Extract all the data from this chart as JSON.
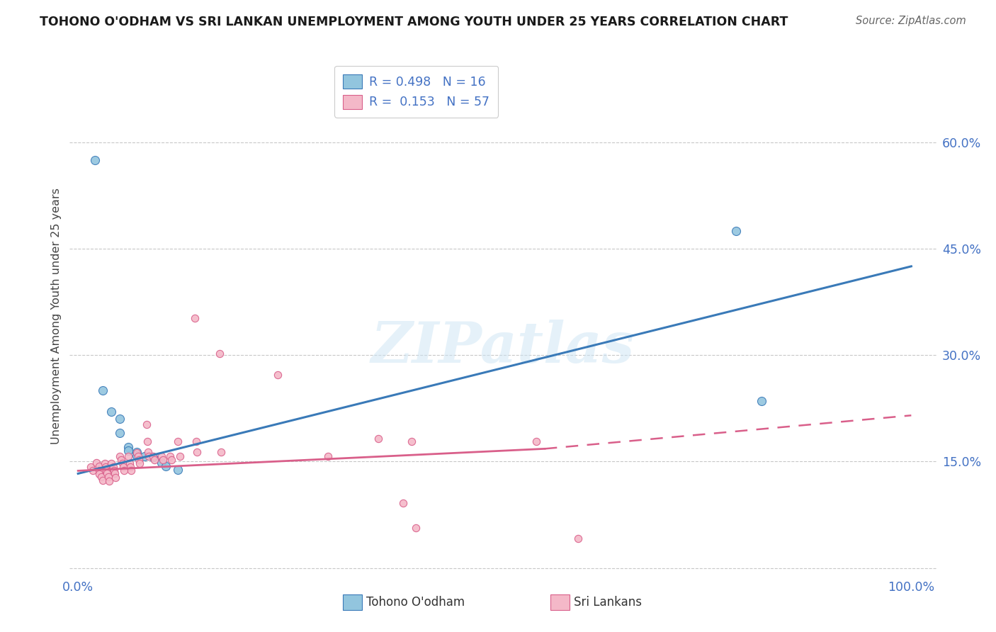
{
  "title": "TOHONO O'ODHAM VS SRI LANKAN UNEMPLOYMENT AMONG YOUTH UNDER 25 YEARS CORRELATION CHART",
  "source": "Source: ZipAtlas.com",
  "ylabel": "Unemployment Among Youth under 25 years",
  "legend_label1": "Tohono O'odham",
  "legend_label2": "Sri Lankans",
  "R1": 0.498,
  "N1": 16,
  "R2": 0.153,
  "N2": 57,
  "xlim": [
    -0.01,
    1.03
  ],
  "ylim": [
    -0.01,
    0.72
  ],
  "yticks": [
    0.0,
    0.15,
    0.3,
    0.45,
    0.6
  ],
  "ytick_labels": [
    "",
    "15.0%",
    "30.0%",
    "45.0%",
    "60.0%"
  ],
  "xticks": [
    0.0,
    1.0
  ],
  "xtick_labels": [
    "0.0%",
    "100.0%"
  ],
  "color_blue": "#92c5de",
  "color_pink": "#f4b8c8",
  "line_blue": "#3a7ab8",
  "line_pink": "#d95f8a",
  "watermark": "ZIPatlas",
  "background_color": "#ffffff",
  "tohono_points": [
    [
      0.02,
      0.575
    ],
    [
      0.03,
      0.25
    ],
    [
      0.04,
      0.22
    ],
    [
      0.05,
      0.21
    ],
    [
      0.05,
      0.19
    ],
    [
      0.06,
      0.17
    ],
    [
      0.06,
      0.165
    ],
    [
      0.07,
      0.163
    ],
    [
      0.07,
      0.158
    ],
    [
      0.08,
      0.157
    ],
    [
      0.09,
      0.156
    ],
    [
      0.1,
      0.148
    ],
    [
      0.105,
      0.143
    ],
    [
      0.12,
      0.138
    ],
    [
      0.79,
      0.475
    ],
    [
      0.82,
      0.235
    ]
  ],
  "srilankan_points": [
    [
      0.015,
      0.142
    ],
    [
      0.018,
      0.137
    ],
    [
      0.022,
      0.148
    ],
    [
      0.025,
      0.143
    ],
    [
      0.025,
      0.137
    ],
    [
      0.025,
      0.132
    ],
    [
      0.028,
      0.128
    ],
    [
      0.03,
      0.123
    ],
    [
      0.032,
      0.147
    ],
    [
      0.033,
      0.142
    ],
    [
      0.034,
      0.137
    ],
    [
      0.035,
      0.133
    ],
    [
      0.036,
      0.128
    ],
    [
      0.037,
      0.122
    ],
    [
      0.04,
      0.147
    ],
    [
      0.042,
      0.142
    ],
    [
      0.043,
      0.137
    ],
    [
      0.044,
      0.133
    ],
    [
      0.045,
      0.127
    ],
    [
      0.05,
      0.157
    ],
    [
      0.052,
      0.152
    ],
    [
      0.053,
      0.147
    ],
    [
      0.054,
      0.142
    ],
    [
      0.055,
      0.137
    ],
    [
      0.06,
      0.157
    ],
    [
      0.062,
      0.147
    ],
    [
      0.063,
      0.142
    ],
    [
      0.064,
      0.137
    ],
    [
      0.07,
      0.162
    ],
    [
      0.072,
      0.157
    ],
    [
      0.073,
      0.152
    ],
    [
      0.074,
      0.147
    ],
    [
      0.082,
      0.202
    ],
    [
      0.083,
      0.178
    ],
    [
      0.084,
      0.163
    ],
    [
      0.085,
      0.157
    ],
    [
      0.09,
      0.157
    ],
    [
      0.092,
      0.152
    ],
    [
      0.1,
      0.157
    ],
    [
      0.102,
      0.152
    ],
    [
      0.11,
      0.157
    ],
    [
      0.112,
      0.152
    ],
    [
      0.12,
      0.178
    ],
    [
      0.122,
      0.157
    ],
    [
      0.14,
      0.352
    ],
    [
      0.142,
      0.178
    ],
    [
      0.143,
      0.163
    ],
    [
      0.17,
      0.302
    ],
    [
      0.172,
      0.163
    ],
    [
      0.24,
      0.272
    ],
    [
      0.3,
      0.157
    ],
    [
      0.36,
      0.182
    ],
    [
      0.39,
      0.092
    ],
    [
      0.4,
      0.178
    ],
    [
      0.405,
      0.057
    ],
    [
      0.55,
      0.178
    ],
    [
      0.6,
      0.042
    ]
  ],
  "blue_line": [
    0.0,
    1.0,
    0.133,
    0.425
  ],
  "pink_solid_line": [
    0.0,
    0.56,
    0.137,
    0.168
  ],
  "pink_dashed_line": [
    0.56,
    1.0,
    0.168,
    0.215
  ],
  "grid_color": "#c8c8c8",
  "tick_color": "#4472c4",
  "title_color": "#1a1a1a",
  "source_color": "#666666",
  "ylabel_color": "#444444"
}
